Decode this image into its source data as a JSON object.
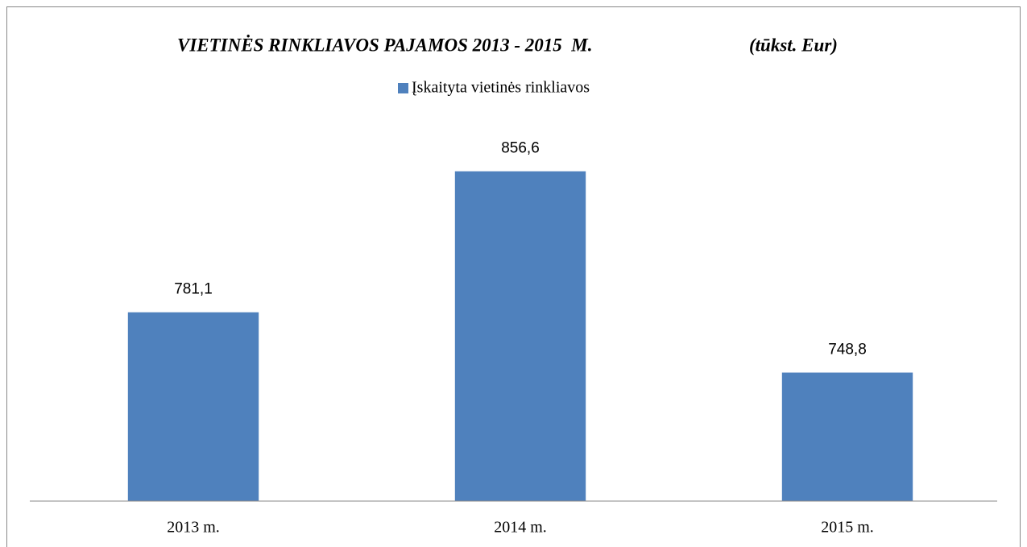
{
  "chart_data": {
    "type": "bar",
    "title": "VIETINĖS RINKLIAVOS PAJAMOS 2013 - 2015  M.",
    "subtitle": "(tūkst. Eur)",
    "categories": [
      "2013 m.",
      "2014 m.",
      "2015 m."
    ],
    "series": [
      {
        "name": "Įskaityta vietinės rinkliavos",
        "color": "#4f81bd",
        "values": [
          781.1,
          856.6,
          748.8
        ],
        "value_labels": [
          "781,1",
          "856,6",
          "748,8"
        ]
      }
    ],
    "ylim": [
      680,
      900
    ]
  }
}
